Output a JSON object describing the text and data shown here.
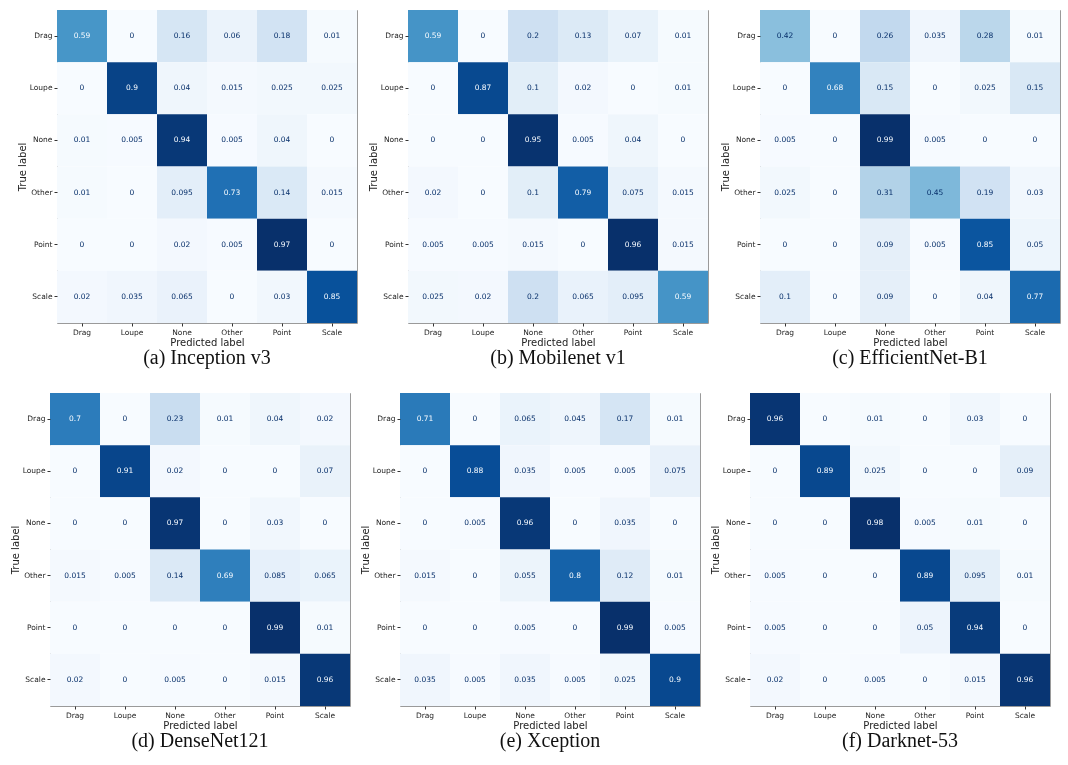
{
  "chart_data": [
    {
      "type": "heatmap",
      "title": "(a) Inception v3",
      "xlabel": "Predicted label",
      "ylabel": "True label",
      "categories": [
        "Drag",
        "Loupe",
        "None",
        "Other",
        "Point",
        "Scale"
      ],
      "y_categories": [
        "Drag",
        "Loupe",
        "None",
        "Other",
        "Point",
        "Scale"
      ],
      "data_labels": true,
      "cells": [
        [
          0.59,
          0,
          0.16,
          0.06,
          0.18,
          0.01
        ],
        [
          0,
          0.9,
          0.04,
          0.015,
          0.025,
          0.025
        ],
        [
          0.01,
          0.005,
          0.94,
          0.005,
          0.04,
          0
        ],
        [
          0.01,
          0,
          0.095,
          0.73,
          0.14,
          0.015
        ],
        [
          0,
          0,
          0.02,
          0.005,
          0.97,
          0
        ],
        [
          0.02,
          0.035,
          0.065,
          0,
          0.03,
          0.85
        ]
      ]
    },
    {
      "type": "heatmap",
      "title": "(b) Mobilenet v1",
      "xlabel": "Predicted label",
      "ylabel": "True label",
      "categories": [
        "Drag",
        "Loupe",
        "None",
        "Other",
        "Point",
        "Scale"
      ],
      "y_categories": [
        "Drag",
        "Loupe",
        "None",
        "Other",
        "Point",
        "Scale"
      ],
      "data_labels": true,
      "cells": [
        [
          0.59,
          0,
          0.2,
          0.13,
          0.07,
          0.01
        ],
        [
          0,
          0.87,
          0.1,
          0.02,
          0,
          0.01
        ],
        [
          0,
          0,
          0.95,
          0.005,
          0.04,
          0
        ],
        [
          0.02,
          0,
          0.1,
          0.79,
          0.075,
          0.015
        ],
        [
          0.005,
          0.005,
          0.015,
          0,
          0.96,
          0.015
        ],
        [
          0.025,
          0.02,
          0.2,
          0.065,
          0.095,
          0.59
        ]
      ]
    },
    {
      "type": "heatmap",
      "title": "(c) EfficientNet-B1",
      "xlabel": "Predicted label",
      "ylabel": "True label",
      "categories": [
        "Drag",
        "Loupe",
        "None",
        "Other",
        "Point",
        "Scale"
      ],
      "y_categories": [
        "Drag",
        "Loupe",
        "None",
        "Other",
        "Point",
        "Scale"
      ],
      "data_labels": true,
      "cells": [
        [
          0.42,
          0,
          0.26,
          0.035,
          0.28,
          0.01
        ],
        [
          0,
          0.68,
          0.15,
          0,
          0.025,
          0.15
        ],
        [
          0.005,
          0,
          0.99,
          0.005,
          0,
          0
        ],
        [
          0.025,
          0,
          0.31,
          0.45,
          0.19,
          0.03
        ],
        [
          0,
          0,
          0.09,
          0.005,
          0.85,
          0.05
        ],
        [
          0.1,
          0,
          0.09,
          0,
          0.04,
          0.77
        ]
      ]
    },
    {
      "type": "heatmap",
      "title": "(d) DenseNet121",
      "xlabel": "Predicted label",
      "ylabel": "True label",
      "categories": [
        "Drag",
        "Loupe",
        "None",
        "Other",
        "Point",
        "Scale"
      ],
      "y_categories": [
        "Drag",
        "Loupe",
        "None",
        "Other",
        "Point",
        "Scale"
      ],
      "data_labels": true,
      "cells": [
        [
          0.7,
          0,
          0.23,
          0.01,
          0.04,
          0.02
        ],
        [
          0,
          0.91,
          0.02,
          0,
          0,
          0.07
        ],
        [
          0,
          0,
          0.97,
          0,
          0.03,
          0
        ],
        [
          0.015,
          0.005,
          0.14,
          0.69,
          0.085,
          0.065
        ],
        [
          0,
          0,
          0,
          0,
          0.99,
          0.01
        ],
        [
          0.02,
          0,
          0.005,
          0,
          0.015,
          0.96
        ]
      ]
    },
    {
      "type": "heatmap",
      "title": "(e) Xception",
      "xlabel": "Predicted label",
      "ylabel": "True label",
      "categories": [
        "Drag",
        "Loupe",
        "None",
        "Other",
        "Point",
        "Scale"
      ],
      "y_categories": [
        "Drag",
        "Loupe",
        "None",
        "Other",
        "Point",
        "Scale"
      ],
      "data_labels": true,
      "cells": [
        [
          0.71,
          0,
          0.065,
          0.045,
          0.17,
          0.01
        ],
        [
          0,
          0.88,
          0.035,
          0.005,
          0.005,
          0.075
        ],
        [
          0,
          0.005,
          0.96,
          0,
          0.035,
          0
        ],
        [
          0.015,
          0,
          0.055,
          0.8,
          0.12,
          0.01
        ],
        [
          0,
          0,
          0.005,
          0,
          0.99,
          0.005
        ],
        [
          0.035,
          0.005,
          0.035,
          0.005,
          0.025,
          0.9
        ]
      ]
    },
    {
      "type": "heatmap",
      "title": "(f) Darknet-53",
      "xlabel": "Predicted label",
      "ylabel": "True label",
      "categories": [
        "Drag",
        "Loupe",
        "None",
        "Other",
        "Point",
        "Scale"
      ],
      "y_categories": [
        "Drag",
        "Loupe",
        "None",
        "Other",
        "Point",
        "Scale"
      ],
      "data_labels": true,
      "cells": [
        [
          0.96,
          0,
          0.01,
          0,
          0.03,
          0
        ],
        [
          0,
          0.89,
          0.025,
          0,
          0,
          0.09
        ],
        [
          0,
          0,
          0.98,
          0.005,
          0.01,
          0
        ],
        [
          0.005,
          0,
          0,
          0.89,
          0.095,
          0.01
        ],
        [
          0.005,
          0,
          0,
          0.05,
          0.94,
          0
        ],
        [
          0.02,
          0,
          0.005,
          0,
          0.015,
          0.96
        ]
      ]
    }
  ]
}
